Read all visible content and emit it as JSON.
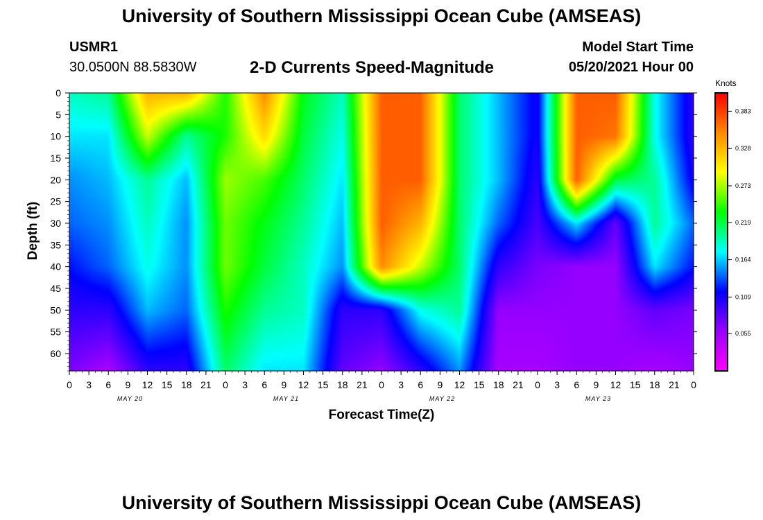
{
  "header": {
    "title": "University of Southern Mississippi Ocean Cube (AMSEAS)",
    "station": "USMR1",
    "coords": "30.0500N  88.5830W",
    "model_label": "Model Start Time",
    "model_time": "05/20/2021 Hour 00"
  },
  "footer": {
    "title": "University of Southern Mississippi Ocean Cube (AMSEAS)"
  },
  "chart_data": {
    "type": "heatmap",
    "title": "2-D Currents Speed-Magnitude",
    "xlabel": "Forecast Time(Z)",
    "ylabel": "Depth (ft)",
    "x_ticks": [
      "0",
      "3",
      "6",
      "9",
      "12",
      "15",
      "18",
      "21",
      "0",
      "3",
      "6",
      "9",
      "12",
      "15",
      "18",
      "21",
      "0",
      "3",
      "6",
      "9",
      "12",
      "15",
      "18",
      "21",
      "0",
      "3",
      "6",
      "9",
      "12",
      "15",
      "18",
      "21",
      "0"
    ],
    "date_labels": [
      "MAY 20",
      "MAY 21",
      "MAY 22",
      "MAY 23"
    ],
    "y_ticks": [
      "0",
      "5",
      "10",
      "15",
      "20",
      "25",
      "30",
      "35",
      "40",
      "45",
      "50",
      "55",
      "60"
    ],
    "x_range_hours": [
      0,
      96
    ],
    "depth_range_ft": [
      0,
      64
    ],
    "colorbar": {
      "unit": "Knots",
      "min": 0.0,
      "max": 0.41,
      "ticks": [
        "0.383",
        "0.328",
        "0.273",
        "0.219",
        "0.164",
        "0.109",
        "0.055"
      ],
      "tick_values": [
        0.383,
        0.328,
        0.273,
        0.219,
        0.164,
        0.109,
        0.055
      ],
      "colors": [
        "#ff00ff",
        "#9900ff",
        "#0000ff",
        "#00ffff",
        "#00ff00",
        "#ffff00",
        "#ff8800",
        "#ff0000"
      ]
    },
    "grid_hours": [
      0,
      6,
      12,
      18,
      24,
      30,
      36,
      42,
      48,
      54,
      60,
      66,
      72,
      78,
      84,
      90,
      96
    ],
    "grid_depths": [
      0,
      10,
      20,
      30,
      40,
      50,
      64
    ],
    "values": [
      [
        0.19,
        0.17,
        0.15,
        0.14,
        0.12,
        0.1,
        0.07
      ],
      [
        0.2,
        0.17,
        0.16,
        0.15,
        0.14,
        0.1,
        0.05
      ],
      [
        0.33,
        0.28,
        0.2,
        0.19,
        0.18,
        0.16,
        0.1
      ],
      [
        0.33,
        0.2,
        0.16,
        0.15,
        0.15,
        0.14,
        0.1
      ],
      [
        0.24,
        0.24,
        0.27,
        0.26,
        0.26,
        0.24,
        0.21
      ],
      [
        0.35,
        0.31,
        0.25,
        0.23,
        0.22,
        0.2,
        0.17
      ],
      [
        0.23,
        0.22,
        0.21,
        0.2,
        0.19,
        0.19,
        0.17
      ],
      [
        0.19,
        0.18,
        0.17,
        0.16,
        0.15,
        0.1,
        0.08
      ],
      [
        0.37,
        0.37,
        0.37,
        0.37,
        0.35,
        0.1,
        0.06
      ],
      [
        0.37,
        0.37,
        0.37,
        0.33,
        0.28,
        0.18,
        0.1
      ],
      [
        0.21,
        0.21,
        0.21,
        0.21,
        0.21,
        0.2,
        0.15
      ],
      [
        0.16,
        0.16,
        0.16,
        0.14,
        0.1,
        0.06,
        0.05
      ],
      [
        0.11,
        0.11,
        0.1,
        0.09,
        0.07,
        0.06,
        0.05
      ],
      [
        0.37,
        0.37,
        0.37,
        0.17,
        0.06,
        0.06,
        0.06
      ],
      [
        0.37,
        0.36,
        0.22,
        0.08,
        0.06,
        0.06,
        0.06
      ],
      [
        0.18,
        0.18,
        0.2,
        0.2,
        0.17,
        0.08,
        0.05
      ],
      [
        0.1,
        0.1,
        0.11,
        0.14,
        0.12,
        0.07,
        0.06
      ]
    ]
  }
}
